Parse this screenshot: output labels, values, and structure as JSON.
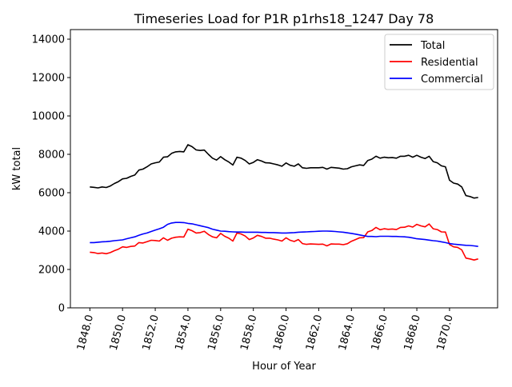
{
  "chart_data": {
    "type": "line",
    "title": "Timeseries Load for P1R p1rhs18_1247  Day 78",
    "xlabel": "Hour of Year",
    "ylabel": "kW total",
    "xlim": [
      1846.81,
      1872.94
    ],
    "ylim": [
      0,
      14500
    ],
    "xticks": [
      1848,
      1850,
      1852,
      1854,
      1856,
      1858,
      1860,
      1862,
      1864,
      1866,
      1868,
      1870
    ],
    "xtick_labels": [
      "1848.0",
      "1850.0",
      "1852.0",
      "1854.0",
      "1856.0",
      "1858.0",
      "1860.0",
      "1862.0",
      "1864.0",
      "1866.0",
      "1868.0",
      "1870.0"
    ],
    "yticks": [
      0,
      2000,
      4000,
      6000,
      8000,
      10000,
      12000,
      14000
    ],
    "ytick_labels": [
      "0",
      "2000",
      "4000",
      "6000",
      "8000",
      "10000",
      "12000",
      "14000"
    ],
    "grid": false,
    "legend_position": "top-right",
    "x_start": 1848,
    "x_step": 0.25,
    "series": [
      {
        "name": "Total",
        "color": "#000000",
        "values": [
          6300,
          6280,
          6250,
          6300,
          6270,
          6350,
          6480,
          6580,
          6720,
          6750,
          6850,
          6920,
          7180,
          7230,
          7350,
          7500,
          7560,
          7600,
          7850,
          7870,
          8050,
          8130,
          8150,
          8130,
          8500,
          8400,
          8230,
          8200,
          8220,
          8000,
          7800,
          7700,
          7880,
          7720,
          7600,
          7440,
          7850,
          7800,
          7680,
          7500,
          7580,
          7720,
          7650,
          7560,
          7550,
          7500,
          7450,
          7380,
          7550,
          7430,
          7380,
          7500,
          7300,
          7270,
          7300,
          7300,
          7300,
          7320,
          7230,
          7320,
          7300,
          7280,
          7230,
          7250,
          7350,
          7400,
          7450,
          7420,
          7680,
          7750,
          7900,
          7800,
          7850,
          7820,
          7830,
          7800,
          7900,
          7900,
          7950,
          7850,
          7950,
          7850,
          7780,
          7900,
          7620,
          7560,
          7400,
          7350,
          6650,
          6500,
          6450,
          6300,
          5850,
          5800,
          5720,
          5750
        ]
      },
      {
        "name": "Residential",
        "color": "#ff0000",
        "values": [
          2900,
          2880,
          2830,
          2860,
          2820,
          2880,
          2980,
          3060,
          3180,
          3150,
          3200,
          3220,
          3400,
          3380,
          3450,
          3520,
          3510,
          3480,
          3650,
          3520,
          3630,
          3680,
          3700,
          3690,
          4100,
          4020,
          3900,
          3920,
          3990,
          3820,
          3700,
          3650,
          3880,
          3730,
          3630,
          3480,
          3900,
          3850,
          3740,
          3560,
          3640,
          3780,
          3720,
          3630,
          3630,
          3580,
          3540,
          3480,
          3650,
          3520,
          3460,
          3560,
          3350,
          3310,
          3330,
          3320,
          3310,
          3320,
          3230,
          3330,
          3320,
          3320,
          3290,
          3340,
          3470,
          3560,
          3650,
          3660,
          3960,
          4030,
          4190,
          4070,
          4120,
          4090,
          4110,
          4080,
          4190,
          4200,
          4270,
          4210,
          4350,
          4270,
          4220,
          4370,
          4120,
          4080,
          3960,
          3950,
          3300,
          3180,
          3150,
          3020,
          2590,
          2550,
          2490,
          2550
        ]
      },
      {
        "name": "Commercial",
        "color": "#0000ff",
        "values": [
          3400,
          3400,
          3420,
          3440,
          3450,
          3470,
          3500,
          3520,
          3540,
          3600,
          3650,
          3700,
          3780,
          3850,
          3900,
          3980,
          4050,
          4120,
          4200,
          4350,
          4420,
          4450,
          4450,
          4440,
          4400,
          4380,
          4330,
          4280,
          4230,
          4180,
          4100,
          4050,
          4000,
          3990,
          3970,
          3960,
          3950,
          3950,
          3940,
          3940,
          3940,
          3940,
          3930,
          3930,
          3920,
          3920,
          3910,
          3900,
          3900,
          3910,
          3920,
          3940,
          3950,
          3960,
          3970,
          3980,
          3990,
          4000,
          4000,
          3990,
          3980,
          3960,
          3940,
          3910,
          3880,
          3840,
          3800,
          3760,
          3720,
          3720,
          3710,
          3730,
          3730,
          3730,
          3720,
          3720,
          3710,
          3700,
          3680,
          3640,
          3600,
          3580,
          3560,
          3530,
          3500,
          3480,
          3440,
          3400,
          3350,
          3320,
          3300,
          3280,
          3260,
          3250,
          3230,
          3200
        ]
      }
    ]
  }
}
